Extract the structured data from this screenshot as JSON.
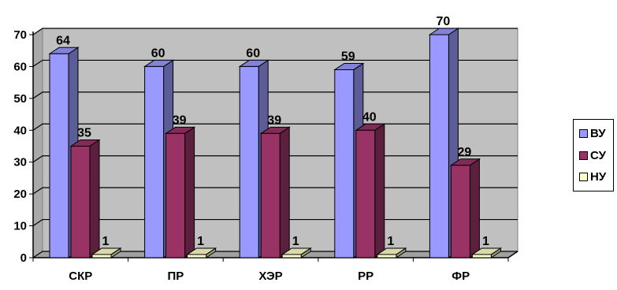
{
  "chart_data": {
    "type": "bar",
    "categories": [
      "СКР",
      "ПР",
      "ХЭР",
      "РР",
      "ФР"
    ],
    "series": [
      {
        "name": "ВУ",
        "values": [
          64,
          60,
          60,
          59,
          70
        ],
        "color": "#9999FF"
      },
      {
        "name": "СУ",
        "values": [
          35,
          39,
          39,
          40,
          29
        ],
        "color": "#993366"
      },
      {
        "name": "НУ",
        "values": [
          1,
          1,
          1,
          1,
          1
        ],
        "color": "#FFFFCC"
      }
    ],
    "yticks": [
      "0",
      "10",
      "20",
      "30",
      "40",
      "50",
      "60",
      "70"
    ],
    "ylim": [
      0,
      70
    ],
    "grid": true,
    "legend_position": "right",
    "plot_color": "#C0C0C0",
    "style": "3d-clustered-column"
  }
}
